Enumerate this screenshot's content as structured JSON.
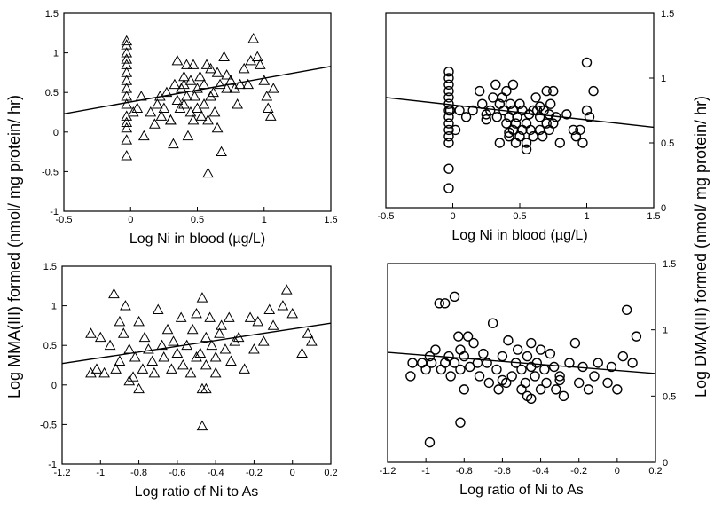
{
  "figure": {
    "ylabel_left": "Log MMA(III) formed (nmol/ mg protein/ hr)",
    "ylabel_right": "Log DMA(III) formed (nmol/ mg protein/ hr)"
  },
  "chart_data": [
    {
      "type": "scatter",
      "marker": "triangle",
      "xlabel": "Log Ni in blood (µg/L)",
      "ylabel": "Log MMA(III) formed (nmol/ mg protein/ hr)",
      "xlim": [
        -0.5,
        1.5
      ],
      "ylim": [
        -1,
        1.5
      ],
      "xticks": [
        "-0.5",
        "0",
        "0.5",
        "1",
        "1.5"
      ],
      "yticks": [
        "-1",
        "-0.5",
        "0",
        "0.5",
        "1",
        "1.5"
      ],
      "y_axis_side": "left",
      "grid": false,
      "trendline": {
        "x": [
          -0.5,
          1.5
        ],
        "y": [
          0.23,
          0.83
        ]
      },
      "x": [
        -0.03,
        -0.03,
        -0.03,
        -0.03,
        -0.03,
        -0.03,
        -0.03,
        -0.03,
        -0.03,
        -0.03,
        -0.03,
        -0.03,
        -0.03,
        -0.03,
        -0.03,
        0.02,
        0.05,
        0.08,
        0.1,
        0.15,
        0.18,
        0.2,
        0.22,
        0.23,
        0.25,
        0.27,
        0.3,
        0.32,
        0.33,
        0.35,
        0.35,
        0.37,
        0.38,
        0.4,
        0.4,
        0.42,
        0.42,
        0.43,
        0.45,
        0.45,
        0.47,
        0.47,
        0.48,
        0.5,
        0.5,
        0.52,
        0.53,
        0.55,
        0.55,
        0.57,
        0.58,
        0.6,
        0.6,
        0.62,
        0.63,
        0.65,
        0.65,
        0.67,
        0.7,
        0.72,
        0.72,
        0.75,
        0.78,
        0.8,
        0.82,
        0.85,
        0.88,
        0.9,
        0.92,
        0.95,
        0.97,
        1.0,
        1.02,
        1.03,
        1.05,
        1.07,
        0.58,
        0.4,
        0.68,
        0.3
      ],
      "y": [
        1.15,
        1.1,
        1.0,
        0.92,
        0.85,
        0.75,
        0.65,
        0.55,
        0.45,
        0.35,
        0.2,
        0.12,
        0.05,
        -0.1,
        -0.3,
        0.25,
        0.3,
        0.45,
        -0.05,
        0.25,
        0.1,
        0.35,
        0.45,
        0.2,
        0.3,
        0.5,
        0.15,
        -0.15,
        0.6,
        0.4,
        0.9,
        0.3,
        0.55,
        0.7,
        0.35,
        0.85,
        0.45,
        -0.05,
        0.25,
        0.65,
        0.15,
        0.85,
        0.45,
        0.55,
        0.3,
        0.7,
        0.2,
        0.6,
        0.35,
        0.85,
        -0.52,
        0.8,
        0.45,
        0.5,
        0.25,
        0.75,
        0.05,
        0.6,
        0.95,
        0.55,
        0.72,
        0.65,
        0.55,
        0.35,
        0.6,
        0.8,
        0.6,
        0.9,
        1.18,
        0.95,
        0.85,
        0.65,
        0.45,
        0.3,
        0.2,
        0.55,
        0.15,
        0.6,
        -0.25,
        0.15
      ]
    },
    {
      "type": "scatter",
      "marker": "circle",
      "xlabel": "Log Ni in blood (µg/L)",
      "ylabel": "Log DMA(III) formed (nmol/ mg protein/ hr)",
      "xlim": [
        -0.5,
        1.5
      ],
      "ylim": [
        0,
        1.5
      ],
      "xticks": [
        "-0.5",
        "0",
        "0.5",
        "1",
        "1.5"
      ],
      "yticks": [
        "0",
        "0.5",
        "1",
        "1.5"
      ],
      "y_axis_side": "right",
      "grid": false,
      "trendline": {
        "x": [
          -0.5,
          1.5
        ],
        "y": [
          0.85,
          0.62
        ]
      },
      "x": [
        -0.03,
        -0.03,
        -0.03,
        -0.03,
        -0.03,
        -0.03,
        -0.03,
        -0.03,
        -0.03,
        -0.03,
        -0.03,
        -0.03,
        -0.03,
        -0.03,
        -0.02,
        0.02,
        0.05,
        0.1,
        0.15,
        0.2,
        0.22,
        0.25,
        0.28,
        0.3,
        0.32,
        0.33,
        0.35,
        0.37,
        0.38,
        0.4,
        0.4,
        0.42,
        0.42,
        0.43,
        0.45,
        0.45,
        0.47,
        0.47,
        0.48,
        0.5,
        0.5,
        0.52,
        0.52,
        0.55,
        0.55,
        0.57,
        0.58,
        0.6,
        0.6,
        0.62,
        0.63,
        0.65,
        0.65,
        0.67,
        0.68,
        0.7,
        0.7,
        0.72,
        0.72,
        0.73,
        0.75,
        0.75,
        0.77,
        0.8,
        0.85,
        0.9,
        0.92,
        0.95,
        0.97,
        1.0,
        1.0,
        1.02,
        1.05,
        0.35,
        0.45,
        0.55,
        0.65,
        0.25,
        0.42
      ],
      "y": [
        1.05,
        1.0,
        0.95,
        0.9,
        0.85,
        0.8,
        0.75,
        0.7,
        0.65,
        0.6,
        0.55,
        0.5,
        0.3,
        0.15,
        0.75,
        0.6,
        0.75,
        0.7,
        0.75,
        0.9,
        0.8,
        0.72,
        0.75,
        0.85,
        0.95,
        0.7,
        0.8,
        0.85,
        0.75,
        0.65,
        0.9,
        0.7,
        0.55,
        0.8,
        0.6,
        0.75,
        0.5,
        0.65,
        0.7,
        0.55,
        0.8,
        0.6,
        0.75,
        0.65,
        0.5,
        0.72,
        0.6,
        0.75,
        0.55,
        0.85,
        0.75,
        0.6,
        0.7,
        0.55,
        0.75,
        0.9,
        0.65,
        0.72,
        0.6,
        0.8,
        0.65,
        0.9,
        0.7,
        0.5,
        0.72,
        0.6,
        0.55,
        0.6,
        0.5,
        1.12,
        0.75,
        0.7,
        0.9,
        0.5,
        0.95,
        0.45,
        0.78,
        0.68,
        0.58
      ]
    },
    {
      "type": "scatter",
      "marker": "triangle",
      "xlabel": "Log ratio of Ni to As",
      "ylabel": "Log MMA(III) formed (nmol/ mg protein/ hr)",
      "xlim": [
        -1.2,
        0.2
      ],
      "ylim": [
        -1,
        1.5
      ],
      "xticks": [
        "-1.2",
        "-1",
        "-0.8",
        "-0.6",
        "-0.4",
        "-0.2",
        "0",
        "0.2"
      ],
      "yticks": [
        "-1",
        "-0.5",
        "0",
        "0.5",
        "1",
        "1.5"
      ],
      "y_axis_side": "left",
      "grid": false,
      "trendline": {
        "x": [
          -1.2,
          0.2
        ],
        "y": [
          0.27,
          0.78
        ]
      },
      "x": [
        -1.05,
        -1.05,
        -1.02,
        -1.0,
        -0.98,
        -0.95,
        -0.93,
        -0.92,
        -0.9,
        -0.9,
        -0.88,
        -0.87,
        -0.85,
        -0.85,
        -0.83,
        -0.82,
        -0.8,
        -0.8,
        -0.78,
        -0.77,
        -0.75,
        -0.73,
        -0.72,
        -0.7,
        -0.68,
        -0.67,
        -0.65,
        -0.63,
        -0.62,
        -0.6,
        -0.58,
        -0.57,
        -0.55,
        -0.53,
        -0.52,
        -0.5,
        -0.5,
        -0.48,
        -0.47,
        -0.47,
        -0.45,
        -0.45,
        -0.43,
        -0.42,
        -0.4,
        -0.4,
        -0.38,
        -0.37,
        -0.35,
        -0.33,
        -0.32,
        -0.3,
        -0.28,
        -0.25,
        -0.22,
        -0.2,
        -0.18,
        -0.15,
        -0.12,
        -0.1,
        -0.05,
        -0.03,
        0.0,
        0.05,
        0.08,
        0.1,
        -0.47,
        -0.45
      ],
      "y": [
        0.65,
        0.15,
        0.2,
        0.6,
        0.15,
        0.5,
        1.15,
        0.2,
        0.8,
        0.3,
        0.65,
        1.0,
        0.45,
        0.05,
        0.1,
        0.35,
        -0.05,
        0.8,
        0.2,
        0.6,
        0.45,
        0.3,
        0.15,
        0.95,
        0.5,
        0.35,
        0.7,
        0.2,
        0.55,
        0.4,
        0.85,
        0.25,
        0.5,
        0.15,
        0.7,
        0.35,
        0.9,
        0.4,
        1.1,
        -0.05,
        0.6,
        0.25,
        0.85,
        0.5,
        0.35,
        0.15,
        0.65,
        0.75,
        0.45,
        0.85,
        0.3,
        0.55,
        0.6,
        0.2,
        0.85,
        0.45,
        0.8,
        0.55,
        0.95,
        0.75,
        1.0,
        1.2,
        0.9,
        0.4,
        0.65,
        0.55,
        -0.52,
        -0.05
      ]
    },
    {
      "type": "scatter",
      "marker": "circle",
      "xlabel": "Log ratio of Ni to As",
      "ylabel": "Log DMA(III) formed (nmol/ mg protein/ hr)",
      "xlim": [
        -1.2,
        0.2
      ],
      "ylim": [
        0,
        1.5
      ],
      "xticks": [
        "-1.2",
        "-1",
        "-0.8",
        "-0.6",
        "-0.4",
        "-0.2",
        "0",
        "0.2"
      ],
      "yticks": [
        "0",
        "0.5",
        "1",
        "1.5"
      ],
      "y_axis_side": "right",
      "grid": false,
      "trendline": {
        "x": [
          -1.2,
          0.2
        ],
        "y": [
          0.83,
          0.67
        ]
      },
      "x": [
        -1.08,
        -1.07,
        -1.02,
        -1.0,
        -0.98,
        -0.97,
        -0.95,
        -0.93,
        -0.92,
        -0.9,
        -0.9,
        -0.88,
        -0.87,
        -0.85,
        -0.85,
        -0.83,
        -0.82,
        -0.82,
        -0.8,
        -0.8,
        -0.78,
        -0.77,
        -0.75,
        -0.73,
        -0.72,
        -0.7,
        -0.68,
        -0.67,
        -0.65,
        -0.63,
        -0.62,
        -0.6,
        -0.58,
        -0.57,
        -0.55,
        -0.53,
        -0.52,
        -0.5,
        -0.5,
        -0.48,
        -0.47,
        -0.47,
        -0.45,
        -0.45,
        -0.43,
        -0.42,
        -0.4,
        -0.4,
        -0.38,
        -0.37,
        -0.35,
        -0.33,
        -0.32,
        -0.3,
        -0.28,
        -0.25,
        -0.22,
        -0.2,
        -0.18,
        -0.15,
        -0.12,
        -0.1,
        -0.05,
        -0.03,
        0.0,
        0.03,
        0.05,
        0.08,
        0.1,
        -0.98,
        -0.82,
        -0.6,
        -0.45,
        -0.3
      ],
      "y": [
        0.65,
        0.75,
        0.75,
        0.7,
        0.8,
        0.75,
        0.85,
        1.2,
        0.7,
        0.75,
        1.2,
        0.8,
        0.65,
        0.75,
        1.25,
        0.95,
        0.7,
        0.3,
        0.55,
        0.8,
        0.95,
        0.72,
        0.9,
        0.75,
        0.65,
        0.82,
        0.75,
        0.6,
        1.05,
        0.7,
        0.55,
        0.8,
        0.6,
        0.92,
        0.65,
        0.75,
        0.85,
        0.55,
        0.7,
        0.6,
        0.8,
        0.5,
        0.72,
        0.9,
        0.65,
        0.75,
        0.55,
        0.85,
        0.7,
        0.6,
        0.82,
        0.72,
        0.55,
        0.65,
        0.5,
        0.75,
        0.9,
        0.6,
        0.72,
        0.55,
        0.65,
        0.75,
        0.6,
        0.72,
        0.55,
        0.8,
        1.15,
        0.75,
        0.95,
        0.15,
        0.85,
        0.62,
        0.48,
        0.62
      ]
    }
  ]
}
